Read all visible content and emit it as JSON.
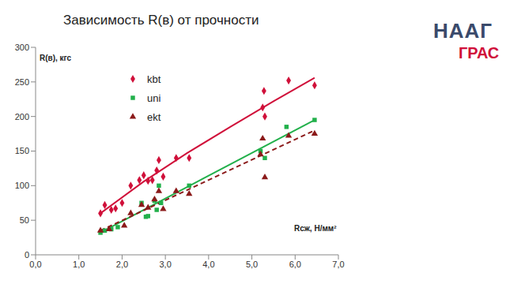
{
  "chart_data": {
    "type": "scatter",
    "title": "Зависимость R(в) от прочности",
    "x_label": "Rсж, Н/мм²",
    "y_label": "R(в), кгс",
    "xlim": [
      0,
      7
    ],
    "ylim": [
      0,
      300
    ],
    "xticks": [
      {
        "value": 0,
        "label": "0,0"
      },
      {
        "value": 1,
        "label": "1,0"
      },
      {
        "value": 2,
        "label": "2,0"
      },
      {
        "value": 3,
        "label": "3,0"
      },
      {
        "value": 4,
        "label": "4,0"
      },
      {
        "value": 5,
        "label": "5,0"
      },
      {
        "value": 6,
        "label": "6,0"
      },
      {
        "value": 7,
        "label": "7,0"
      }
    ],
    "yticks": [
      0,
      50,
      100,
      150,
      200,
      250,
      300
    ],
    "grid": false,
    "legend": "upper left",
    "annotations": [
      "НААГ",
      "ГРАС"
    ],
    "series": [
      {
        "name": "kbt",
        "color": "#d0103a",
        "marker": "diamond",
        "line_style": "solid",
        "x": [
          1.5,
          1.6,
          1.75,
          1.85,
          2.0,
          2.2,
          2.4,
          2.5,
          2.6,
          2.7,
          2.8,
          2.85,
          2.95,
          3.25,
          3.55,
          5.25,
          5.28,
          5.3,
          5.85,
          6.45
        ],
        "values": [
          60,
          72,
          65,
          67,
          75,
          100,
          108,
          115,
          107,
          108,
          122,
          137,
          113,
          140,
          140,
          213,
          237,
          200,
          252,
          245
        ],
        "trend": {
          "x": [
            1.5,
            2.5,
            3.5,
            4.5,
            5.5,
            6.45
          ],
          "values": [
            60,
            106,
            147,
            185,
            222,
            256
          ]
        }
      },
      {
        "name": "uni",
        "color": "#22b04b",
        "marker": "square",
        "line_style": "solid",
        "x": [
          1.5,
          1.6,
          1.75,
          1.9,
          2.45,
          2.55,
          2.6,
          2.75,
          2.8,
          2.85,
          2.9,
          3.55,
          5.2,
          5.3,
          5.8,
          6.45
        ],
        "values": [
          32,
          35,
          37,
          40,
          75,
          55,
          56,
          78,
          65,
          100,
          75,
          100,
          150,
          140,
          185,
          195
        ],
        "trend": {
          "x": [
            1.5,
            6.45
          ],
          "values": [
            32,
            195
          ]
        }
      },
      {
        "name": "ekt",
        "color": "#8b1a1a",
        "marker": "triangle",
        "line_style": "dashed",
        "x": [
          1.5,
          1.7,
          2.05,
          2.2,
          2.45,
          2.6,
          2.75,
          2.85,
          2.95,
          3.25,
          3.55,
          5.2,
          5.25,
          5.3,
          5.85,
          6.45
        ],
        "values": [
          35,
          37,
          42,
          60,
          72,
          68,
          80,
          92,
          66,
          92,
          88,
          145,
          168,
          112,
          172,
          175
        ],
        "trend": {
          "x": [
            1.5,
            6.45
          ],
          "values": [
            35,
            180
          ]
        }
      }
    ]
  }
}
